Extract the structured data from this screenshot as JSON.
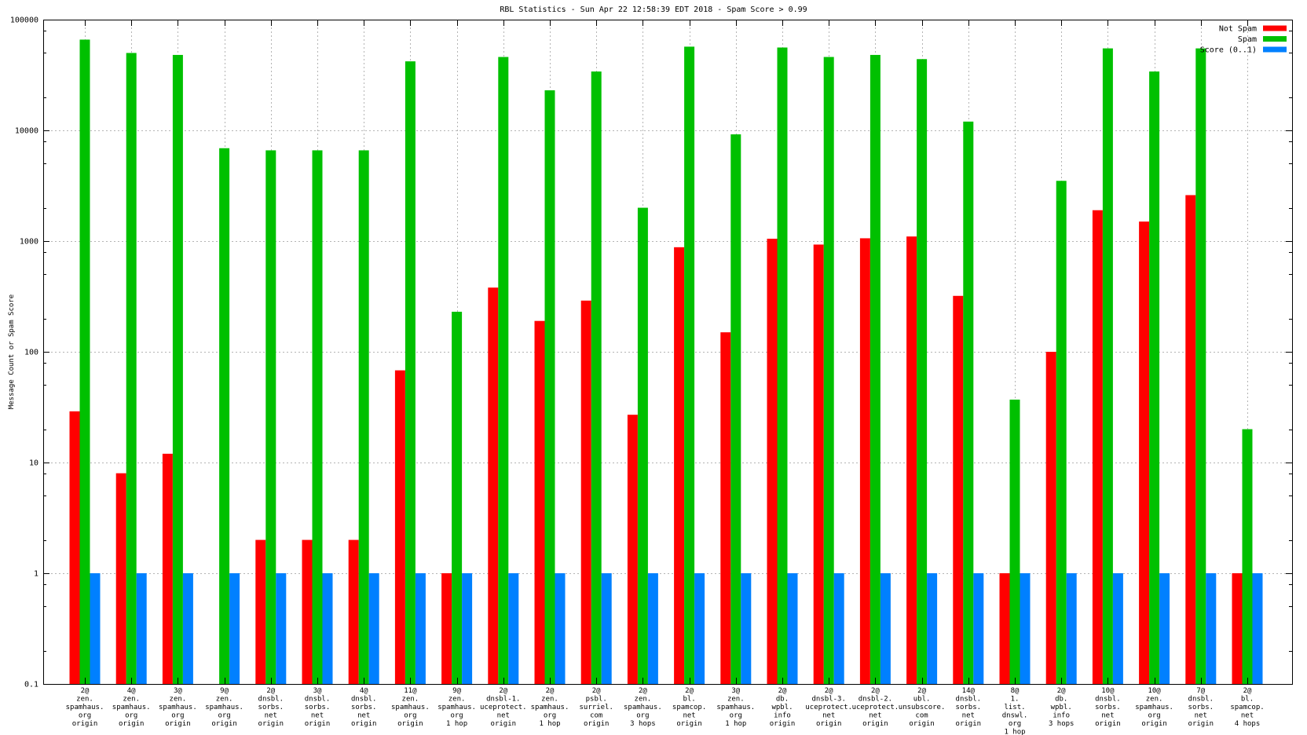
{
  "chart_data": {
    "type": "bar",
    "title": "RBL Statistics - Sun Apr 22 12:58:39 EDT 2018 - Spam Score > 0.99",
    "ylabel": "Message Count or Spam Score",
    "xlabel": "",
    "y_scale": "log",
    "ylim": [
      0.1,
      100000
    ],
    "y_tick_values": [
      100000,
      10000,
      1000,
      100,
      10,
      1,
      0.1
    ],
    "y_tick_labels": [
      "100000",
      "10000",
      "1000",
      "100",
      "10",
      "1",
      "0.1"
    ],
    "grid": true,
    "legend_position": "top-right-inside",
    "categories": [
      [
        "2@",
        "zen.",
        "spamhaus.",
        "org",
        "origin"
      ],
      [
        "4@",
        "zen.",
        "spamhaus.",
        "org",
        "origin"
      ],
      [
        "3@",
        "zen.",
        "spamhaus.",
        "org",
        "origin"
      ],
      [
        "9@",
        "zen.",
        "spamhaus.",
        "org",
        "origin"
      ],
      [
        "2@",
        "dnsbl.",
        "sorbs.",
        "net",
        "origin"
      ],
      [
        "3@",
        "dnsbl.",
        "sorbs.",
        "net",
        "origin"
      ],
      [
        "4@",
        "dnsbl.",
        "sorbs.",
        "net",
        "origin"
      ],
      [
        "11@",
        "zen.",
        "spamhaus.",
        "org",
        "origin"
      ],
      [
        "9@",
        "zen.",
        "spamhaus.",
        "org",
        "1 hop"
      ],
      [
        "2@",
        "dnsbl-1.",
        "uceprotect.",
        "net",
        "origin"
      ],
      [
        "2@",
        "zen.",
        "spamhaus.",
        "org",
        "1 hop"
      ],
      [
        "2@",
        "psbl.",
        "surriel.",
        "com",
        "origin"
      ],
      [
        "2@",
        "zen.",
        "spamhaus.",
        "org",
        "3 hops"
      ],
      [
        "2@",
        "bl.",
        "spamcop.",
        "net",
        "origin"
      ],
      [
        "3@",
        "zen.",
        "spamhaus.",
        "org",
        "1 hop"
      ],
      [
        "2@",
        "db.",
        "wpbl.",
        "info",
        "origin"
      ],
      [
        "2@",
        "dnsbl-3.",
        "uceprotect.",
        "net",
        "origin"
      ],
      [
        "2@",
        "dnsbl-2.",
        "uceprotect.",
        "net",
        "origin"
      ],
      [
        "2@",
        "ubl.",
        "unsubscore.",
        "com",
        "origin"
      ],
      [
        "14@",
        "dnsbl.",
        "sorbs.",
        "net",
        "origin"
      ],
      [
        "8@",
        "1.",
        "list.",
        "dnswl.",
        "org",
        "1 hop"
      ],
      [
        "2@",
        "db.",
        "wpbl.",
        "info",
        "3 hops"
      ],
      [
        "10@",
        "dnsbl.",
        "sorbs.",
        "net",
        "origin"
      ],
      [
        "10@",
        "zen.",
        "spamhaus.",
        "org",
        "origin"
      ],
      [
        "7@",
        "dnsbl.",
        "sorbs.",
        "net",
        "origin"
      ],
      [
        "2@",
        "bl.",
        "spamcop.",
        "net",
        "4 hops"
      ]
    ],
    "series": [
      {
        "name": "Not Spam",
        "color": "#ff0000",
        "values": [
          29,
          8,
          12,
          0,
          2,
          2,
          2,
          68,
          1,
          380,
          190,
          290,
          27,
          880,
          150,
          1050,
          930,
          1060,
          1100,
          320,
          1,
          100,
          1900,
          1500,
          2600,
          1
        ]
      },
      {
        "name": "Spam",
        "color": "#00c000",
        "values": [
          66000,
          50000,
          48000,
          6900,
          6600,
          6600,
          6600,
          42000,
          230,
          46000,
          23000,
          34000,
          2000,
          57000,
          9200,
          56000,
          46000,
          48000,
          44000,
          12000,
          37,
          3500,
          55000,
          34000,
          55000,
          20
        ]
      },
      {
        "name": "Score (0..1)",
        "color": "#0080ff",
        "values": [
          1,
          1,
          1,
          1,
          1,
          1,
          1,
          1,
          1,
          1,
          1,
          1,
          1,
          1,
          1,
          1,
          1,
          1,
          1,
          1,
          1,
          1,
          1,
          1,
          1,
          1
        ]
      }
    ]
  },
  "colors": {
    "background": "#ffffff",
    "axis": "#000000",
    "grid": "#b4b4b4",
    "not_spam": "#ff0000",
    "spam": "#00c000",
    "score": "#0080ff"
  }
}
